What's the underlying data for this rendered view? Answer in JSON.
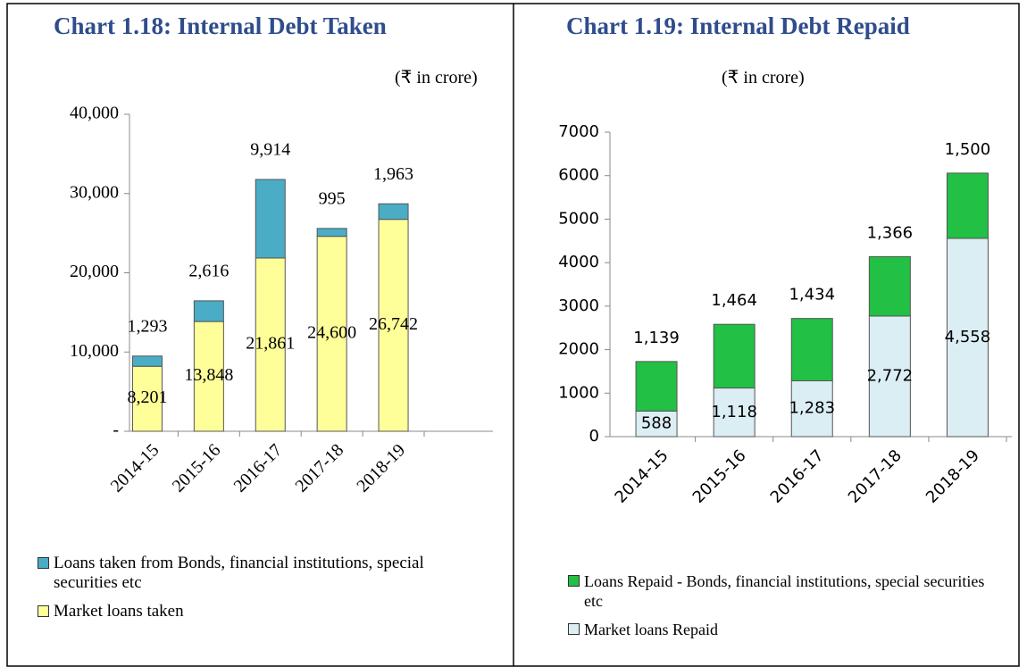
{
  "chart_data": [
    {
      "type": "bar",
      "stacked": true,
      "title": "Chart 1.18: Internal Debt Taken",
      "subtitle": "(₹ in crore)",
      "categories": [
        "2014-15",
        "2015-16",
        "2016-17",
        "2017-18",
        "2018-19"
      ],
      "series": [
        {
          "name": "Loans taken from Bonds, financial institutions, special securities etc",
          "color": "#4bacc6",
          "values": [
            1293,
            2616,
            9914,
            995,
            1963
          ],
          "value_labels": [
            "1,293",
            "2,616",
            "9,914",
            "995",
            "1,963"
          ]
        },
        {
          "name": "Market loans taken",
          "color": "#ffff99",
          "values": [
            8201,
            13848,
            21861,
            24600,
            26742
          ],
          "value_labels": [
            "8,201",
            "13,848",
            "21,861",
            "24,600",
            "26,742"
          ]
        }
      ],
      "ylim": [
        0,
        40000
      ],
      "yticks": [
        {
          "value": 0,
          "label": "-"
        },
        {
          "value": 10000,
          "label": "10,000"
        },
        {
          "value": 20000,
          "label": "20,000"
        },
        {
          "value": 30000,
          "label": "30,000"
        },
        {
          "value": 40000,
          "label": "40,000"
        }
      ]
    },
    {
      "type": "bar",
      "stacked": true,
      "title": "Chart 1.19: Internal Debt Repaid",
      "subtitle": "(₹ in crore)",
      "categories": [
        "2014-15",
        "2015-16",
        "2016-17",
        "2017-18",
        "2018-19"
      ],
      "series": [
        {
          "name": "Loans Repaid  - Bonds, financial institutions, special securities etc",
          "color": "#22c044",
          "values": [
            1139,
            1464,
            1434,
            1366,
            1500
          ],
          "value_labels": [
            "1,139",
            "1,464",
            "1,434",
            "1,366",
            "1,500"
          ]
        },
        {
          "name": "Market loans Repaid",
          "color": "#dbeef4",
          "values": [
            588,
            1118,
            1283,
            2772,
            4558
          ],
          "value_labels": [
            "588",
            "1,118",
            "1,283",
            "2,772",
            "4,558"
          ]
        }
      ],
      "ylim": [
        0,
        7000
      ],
      "yticks": [
        0,
        1000,
        2000,
        3000,
        4000,
        5000,
        6000,
        7000
      ]
    }
  ]
}
